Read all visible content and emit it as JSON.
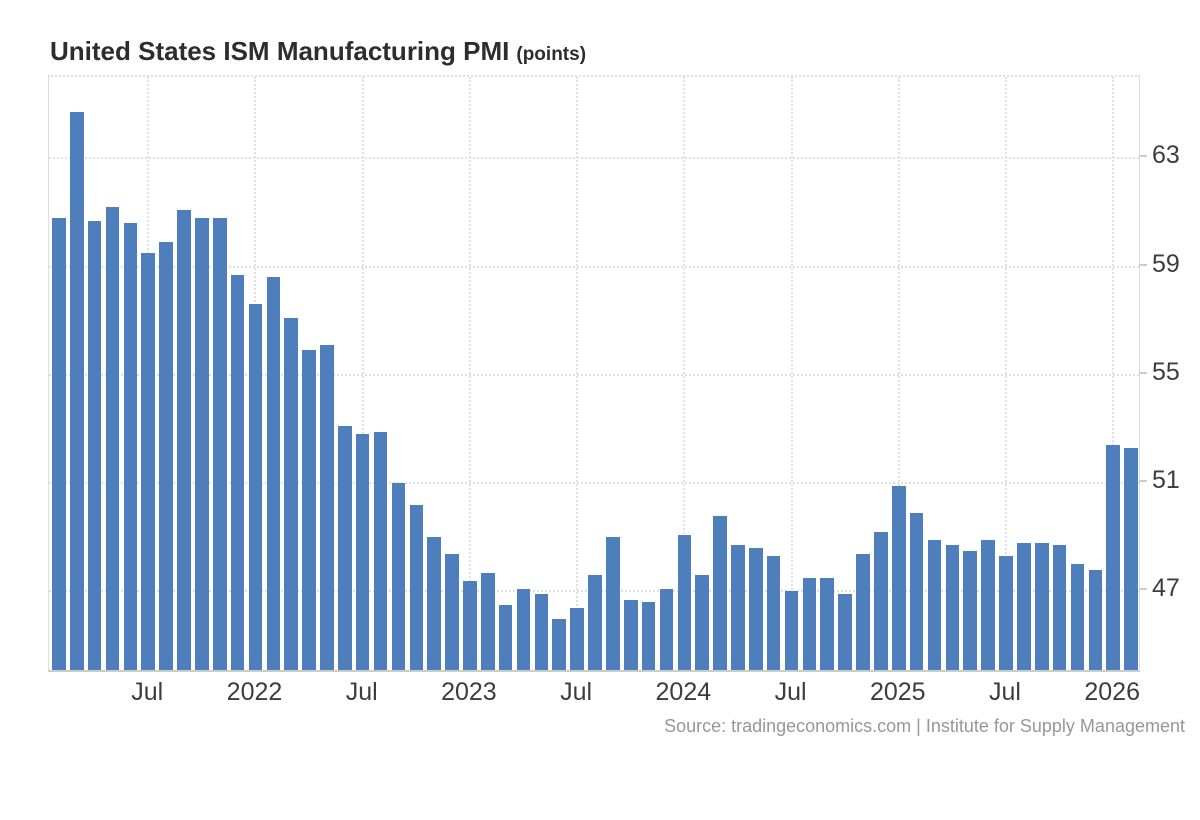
{
  "title": {
    "text": "United States ISM Manufacturing PMI",
    "unit": "(points)"
  },
  "source_text": "Source: tradingeconomics.com | Institute for Supply Management",
  "colors": {
    "bar": "#4e7fbc",
    "grid": "#e0e0e0",
    "plot_border": "#dddddd",
    "axis_baseline": "#cccccc",
    "axis_text": "#3d3d3d",
    "title_text": "#2d2d2d",
    "source_text": "#979797",
    "background": "#ffffff"
  },
  "chart_data": {
    "type": "bar",
    "title": "United States ISM Manufacturing PMI (points)",
    "xlabel": "",
    "ylabel": "points",
    "legend_position": "none",
    "grid": true,
    "ylim": [
      44.1,
      66.0
    ],
    "yticks": [
      47,
      51,
      55,
      59,
      63
    ],
    "yticks_side": "right",
    "categories": [
      "Feb 2021",
      "Mar 2021",
      "Apr 2021",
      "May 2021",
      "Jun 2021",
      "Jul 2021",
      "Aug 2021",
      "Sep 2021",
      "Oct 2021",
      "Nov 2021",
      "Dec 2021",
      "Jan 2022",
      "Feb 2022",
      "Mar 2022",
      "Apr 2022",
      "May 2022",
      "Jun 2022",
      "Jul 2022",
      "Aug 2022",
      "Sep 2022",
      "Oct 2022",
      "Nov 2022",
      "Dec 2022",
      "Jan 2023",
      "Feb 2023",
      "Mar 2023",
      "Apr 2023",
      "May 2023",
      "Jun 2023",
      "Jul 2023",
      "Aug 2023",
      "Sep 2023",
      "Oct 2023",
      "Nov 2023",
      "Dec 2023",
      "Jan 2024",
      "Feb 2024",
      "Mar 2024",
      "Apr 2024",
      "May 2024",
      "Jun 2024",
      "Jul 2024",
      "Aug 2024",
      "Sep 2024",
      "Oct 2024",
      "Nov 2024",
      "Dec 2024",
      "Jan 2025",
      "Feb 2025",
      "Mar 2025",
      "Apr 2025",
      "May 2025",
      "Jun 2025",
      "Jul 2025",
      "Aug 2025",
      "Sep 2025",
      "Oct 2025",
      "Nov 2025",
      "Dec 2025",
      "Jan 2026",
      "Feb 2026"
    ],
    "values": [
      60.8,
      64.7,
      60.7,
      61.2,
      60.6,
      59.5,
      59.9,
      61.1,
      60.8,
      60.8,
      58.7,
      57.6,
      58.6,
      57.1,
      55.9,
      56.1,
      53.1,
      52.8,
      52.9,
      51.0,
      50.2,
      49.0,
      48.4,
      47.4,
      47.7,
      46.5,
      47.1,
      46.9,
      46.0,
      46.4,
      47.6,
      49.0,
      46.7,
      46.6,
      47.1,
      49.1,
      47.6,
      49.8,
      48.7,
      48.6,
      48.3,
      47.0,
      47.5,
      47.5,
      46.9,
      48.4,
      49.2,
      50.9,
      49.9,
      48.9,
      48.7,
      48.5,
      48.9,
      48.3,
      48.8,
      48.8,
      48.7,
      48.0,
      47.8,
      52.4,
      52.3
    ],
    "xticks": [
      {
        "index": 5,
        "label": "Jul"
      },
      {
        "index": 11,
        "label": "2022"
      },
      {
        "index": 17,
        "label": "Jul"
      },
      {
        "index": 23,
        "label": "2023"
      },
      {
        "index": 29,
        "label": "Jul"
      },
      {
        "index": 35,
        "label": "2024"
      },
      {
        "index": 41,
        "label": "Jul"
      },
      {
        "index": 47,
        "label": "2025"
      },
      {
        "index": 53,
        "label": "Jul"
      },
      {
        "index": 59,
        "label": "2026"
      }
    ]
  }
}
